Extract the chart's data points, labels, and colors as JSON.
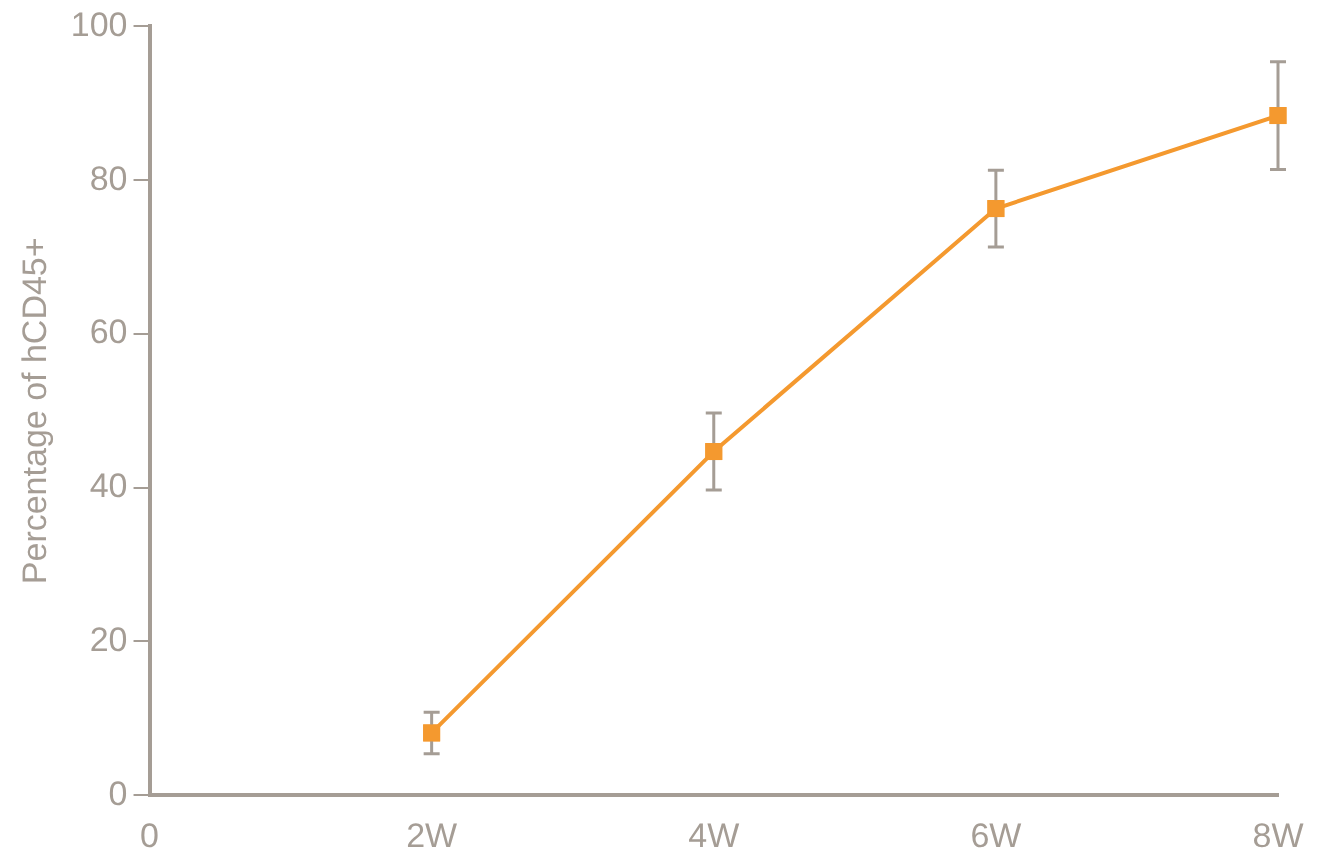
{
  "chart_data": {
    "type": "line",
    "ylabel": "Percentage of hCD45+",
    "categories": [
      "0",
      "2W",
      "4W",
      "6W",
      "8W"
    ],
    "series": [
      {
        "color": "#f4992f",
        "values": [
          null,
          8.1,
          44.7,
          76.3,
          88.4
        ],
        "errors": [
          null,
          2.7,
          5,
          5,
          7
        ]
      }
    ],
    "ylim": [
      0,
      100
    ],
    "yticks": [
      0,
      20,
      40,
      60,
      80,
      100
    ],
    "grid": false,
    "legend": false,
    "marker": "square",
    "line_style": "solid"
  }
}
